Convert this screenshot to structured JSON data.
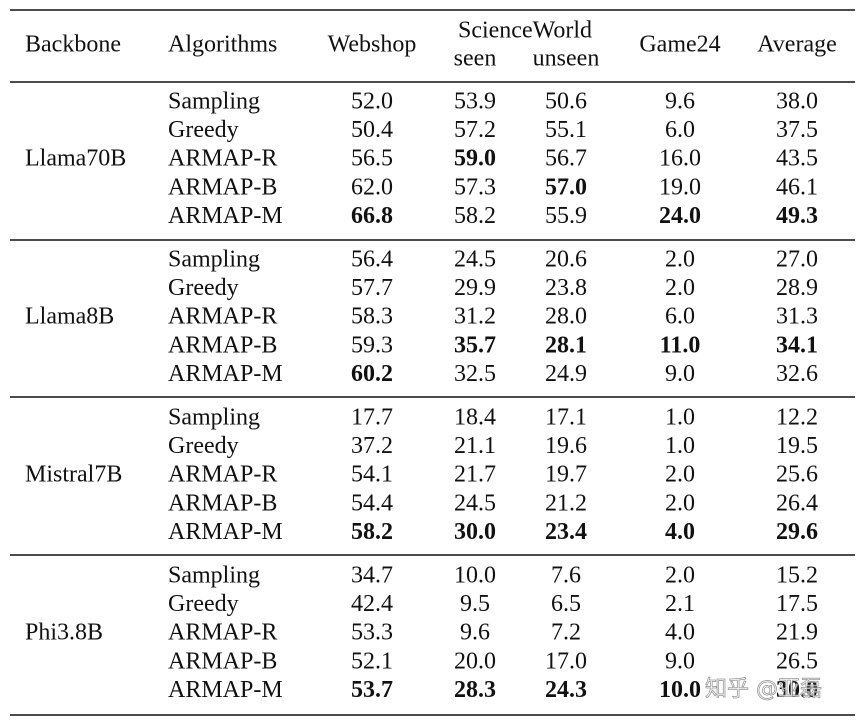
{
  "header": {
    "backbone": "Backbone",
    "algorithms": "Algorithms",
    "webshop": "Webshop",
    "scienceworld": "ScienceWorld",
    "seen": "seen",
    "unseen": "unseen",
    "game24": "Game24",
    "average": "Average"
  },
  "groups": [
    {
      "backbone": "Llama70B",
      "rows": [
        {
          "algorithm": "Sampling",
          "cells": [
            "52.0",
            "53.9",
            "50.6",
            "9.6",
            "38.0"
          ],
          "bold": []
        },
        {
          "algorithm": "Greedy",
          "cells": [
            "50.4",
            "57.2",
            "55.1",
            "6.0",
            "37.5"
          ],
          "bold": []
        },
        {
          "algorithm": "ARMAP-R",
          "cells": [
            "56.5",
            "59.0",
            "56.7",
            "16.0",
            "43.5"
          ],
          "bold": [
            1
          ]
        },
        {
          "algorithm": "ARMAP-B",
          "cells": [
            "62.0",
            "57.3",
            "57.0",
            "19.0",
            "46.1"
          ],
          "bold": [
            2
          ]
        },
        {
          "algorithm": "ARMAP-M",
          "cells": [
            "66.8",
            "58.2",
            "55.9",
            "24.0",
            "49.3"
          ],
          "bold": [
            0,
            3,
            4
          ]
        }
      ]
    },
    {
      "backbone": "Llama8B",
      "rows": [
        {
          "algorithm": "Sampling",
          "cells": [
            "56.4",
            "24.5",
            "20.6",
            "2.0",
            "27.0"
          ],
          "bold": []
        },
        {
          "algorithm": "Greedy",
          "cells": [
            "57.7",
            "29.9",
            "23.8",
            "2.0",
            "28.9"
          ],
          "bold": []
        },
        {
          "algorithm": "ARMAP-R",
          "cells": [
            "58.3",
            "31.2",
            "28.0",
            "6.0",
            "31.3"
          ],
          "bold": []
        },
        {
          "algorithm": "ARMAP-B",
          "cells": [
            "59.3",
            "35.7",
            "28.1",
            "11.0",
            "34.1"
          ],
          "bold": [
            1,
            2,
            3,
            4
          ]
        },
        {
          "algorithm": "ARMAP-M",
          "cells": [
            "60.2",
            "32.5",
            "24.9",
            "9.0",
            "32.6"
          ],
          "bold": [
            0
          ]
        }
      ]
    },
    {
      "backbone": "Mistral7B",
      "rows": [
        {
          "algorithm": "Sampling",
          "cells": [
            "17.7",
            "18.4",
            "17.1",
            "1.0",
            "12.2"
          ],
          "bold": []
        },
        {
          "algorithm": "Greedy",
          "cells": [
            "37.2",
            "21.1",
            "19.6",
            "1.0",
            "19.5"
          ],
          "bold": []
        },
        {
          "algorithm": "ARMAP-R",
          "cells": [
            "54.1",
            "21.7",
            "19.7",
            "2.0",
            "25.6"
          ],
          "bold": []
        },
        {
          "algorithm": "ARMAP-B",
          "cells": [
            "54.4",
            "24.5",
            "21.2",
            "2.0",
            "26.4"
          ],
          "bold": []
        },
        {
          "algorithm": "ARMAP-M",
          "cells": [
            "58.2",
            "30.0",
            "23.4",
            "4.0",
            "29.6"
          ],
          "bold": [
            0,
            1,
            2,
            3,
            4
          ]
        }
      ]
    },
    {
      "backbone": "Phi3.8B",
      "rows": [
        {
          "algorithm": "Sampling",
          "cells": [
            "34.7",
            "10.0",
            "7.6",
            "2.0",
            "15.2"
          ],
          "bold": []
        },
        {
          "algorithm": "Greedy",
          "cells": [
            "42.4",
            "9.5",
            "6.5",
            "2.1",
            "17.5"
          ],
          "bold": []
        },
        {
          "algorithm": "ARMAP-R",
          "cells": [
            "53.3",
            "9.6",
            "7.2",
            "4.0",
            "21.9"
          ],
          "bold": []
        },
        {
          "algorithm": "ARMAP-B",
          "cells": [
            "52.1",
            "20.0",
            "17.0",
            "9.0",
            "26.5"
          ],
          "bold": []
        },
        {
          "algorithm": "ARMAP-M",
          "cells": [
            "53.7",
            "28.3",
            "24.3",
            "10.0",
            "30.0"
          ],
          "bold": [
            0,
            1,
            2,
            3,
            4
          ]
        }
      ]
    }
  ],
  "watermark": "知乎 @亚磊"
}
